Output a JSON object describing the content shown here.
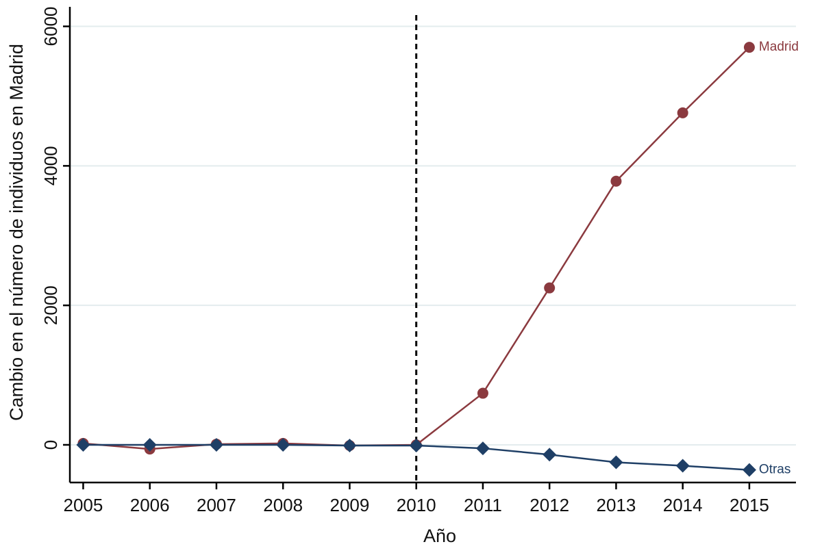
{
  "chart_data": {
    "type": "line",
    "title": "",
    "xlabel": "Año",
    "ylabel": "Cambio en el número de individuos en Madrid",
    "x": [
      2005,
      2006,
      2007,
      2008,
      2009,
      2010,
      2011,
      2012,
      2013,
      2014,
      2015
    ],
    "xticks": [
      "2005",
      "2006",
      "2007",
      "2008",
      "2009",
      "2010",
      "2011",
      "2012",
      "2013",
      "2014",
      "2015"
    ],
    "yticks": [
      "0",
      "2000",
      "4000",
      "6000"
    ],
    "ytick_values": [
      0,
      2000,
      4000,
      6000
    ],
    "ylim": [
      -540,
      6280
    ],
    "xlim": [
      2004.8,
      2015.7
    ],
    "grid": "horizontal",
    "legend": "none",
    "vertical_reference_line": {
      "x": 2010,
      "style": "dashed"
    },
    "series": [
      {
        "name": "Madrid",
        "color": "#8b3a3f",
        "marker": "circle",
        "values": [
          20,
          -60,
          10,
          20,
          -10,
          0,
          740,
          2250,
          3780,
          4760,
          5700
        ]
      },
      {
        "name": "Otras",
        "color": "#1f3f66",
        "marker": "diamond",
        "values": [
          0,
          0,
          0,
          0,
          -10,
          -10,
          -50,
          -140,
          -250,
          -300,
          -360
        ]
      }
    ]
  }
}
